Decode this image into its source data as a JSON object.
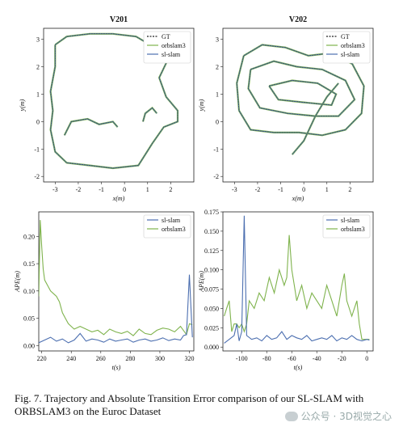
{
  "colors": {
    "gt": "#222222",
    "orbslam3": "#7fb34d",
    "slslam": "#4c6fb0"
  },
  "caption": "Fig. 7.  Trajectory and Absolute Transition Error comparison of our SL-SLAM with ORBSLAM3 on the Euroc Dataset",
  "watermark": "公众号 · 3D视觉之心",
  "chart_data": [
    {
      "type": "line",
      "title": "V201",
      "xlabel": "x(m)",
      "ylabel": "y(m)",
      "xlim": [
        -3.5,
        3.0
      ],
      "ylim": [
        -2.2,
        3.4
      ],
      "xticks": [
        -3,
        -2,
        -1,
        0,
        1,
        2
      ],
      "yticks": [
        -2,
        -1,
        0,
        1,
        2,
        3
      ],
      "legend": "top-right",
      "legend_entries": [
        "GT",
        "orbslam3",
        "sl-slam"
      ],
      "series": [
        {
          "name": "sl-slam",
          "points": [
            [
              -3.0,
              2.8
            ],
            [
              -2.5,
              3.1
            ],
            [
              -1.5,
              3.2
            ],
            [
              -0.5,
              3.2
            ],
            [
              0.5,
              3.1
            ],
            [
              1.3,
              2.7
            ],
            [
              1.9,
              2.3
            ],
            [
              1.5,
              1.6
            ],
            [
              1.8,
              0.9
            ],
            [
              2.3,
              0.4
            ],
            [
              2.3,
              0.0
            ],
            [
              1.7,
              -0.2
            ],
            [
              1.2,
              -0.8
            ],
            [
              0.6,
              -1.6
            ],
            [
              -0.5,
              -1.7
            ],
            [
              -1.5,
              -1.6
            ],
            [
              -2.5,
              -1.5
            ],
            [
              -3.0,
              -1.1
            ],
            [
              -3.2,
              -0.3
            ],
            [
              -3.1,
              0.4
            ],
            [
              -3.2,
              1.1
            ],
            [
              -3.0,
              2.0
            ],
            [
              -3.0,
              2.8
            ]
          ]
        },
        {
          "name": "sl-slam",
          "points": [
            [
              -2.6,
              -0.5
            ],
            [
              -2.3,
              0.0
            ],
            [
              -1.6,
              0.1
            ],
            [
              -1.1,
              -0.1
            ],
            [
              -0.5,
              0.0
            ],
            [
              -0.3,
              -0.2
            ]
          ]
        },
        {
          "name": "sl-slam",
          "points": [
            [
              0.8,
              0.0
            ],
            [
              0.9,
              0.3
            ],
            [
              1.2,
              0.5
            ],
            [
              1.4,
              0.3
            ]
          ]
        }
      ]
    },
    {
      "type": "line",
      "title": "V202",
      "xlabel": "x(m)",
      "ylabel": "y(m)",
      "xlim": [
        -3.5,
        3.0
      ],
      "ylim": [
        -2.2,
        3.4
      ],
      "xticks": [
        -3,
        -2,
        -1,
        0,
        1,
        2
      ],
      "yticks": [
        -2,
        -1,
        0,
        1,
        2,
        3
      ],
      "legend": "top-right",
      "legend_entries": [
        "GT",
        "orbslam3",
        "sl-slam"
      ],
      "series": [
        {
          "name": "sl-slam",
          "points": [
            [
              -2.6,
              2.4
            ],
            [
              -1.8,
              2.8
            ],
            [
              -0.8,
              2.7
            ],
            [
              0.2,
              2.4
            ],
            [
              1.2,
              2.5
            ],
            [
              2.1,
              2.1
            ],
            [
              2.6,
              1.3
            ],
            [
              2.5,
              0.3
            ],
            [
              1.8,
              -0.3
            ],
            [
              0.8,
              -0.5
            ],
            [
              -0.2,
              -0.4
            ],
            [
              -1.3,
              -0.4
            ],
            [
              -2.3,
              -0.3
            ],
            [
              -2.8,
              0.4
            ],
            [
              -2.9,
              1.4
            ],
            [
              -2.6,
              2.4
            ]
          ]
        },
        {
          "name": "sl-slam",
          "points": [
            [
              -2.3,
              1.9
            ],
            [
              -1.3,
              2.2
            ],
            [
              -0.3,
              2.0
            ],
            [
              0.8,
              1.9
            ],
            [
              1.8,
              1.5
            ],
            [
              2.2,
              0.8
            ],
            [
              1.5,
              0.2
            ],
            [
              0.5,
              0.2
            ],
            [
              -0.7,
              0.3
            ],
            [
              -1.9,
              0.5
            ],
            [
              -2.4,
              1.2
            ],
            [
              -2.3,
              1.9
            ]
          ]
        },
        {
          "name": "sl-slam",
          "points": [
            [
              -1.5,
              1.3
            ],
            [
              -0.5,
              1.5
            ],
            [
              0.6,
              1.4
            ],
            [
              1.4,
              1.0
            ],
            [
              1.2,
              0.6
            ],
            [
              0.0,
              0.7
            ],
            [
              -1.1,
              0.8
            ],
            [
              -1.5,
              1.3
            ]
          ]
        },
        {
          "name": "sl-slam",
          "points": [
            [
              -0.5,
              -1.2
            ],
            [
              0.0,
              -0.7
            ],
            [
              0.5,
              0.2
            ],
            [
              1.0,
              0.9
            ],
            [
              1.5,
              1.4
            ]
          ]
        }
      ]
    },
    {
      "type": "line",
      "xlabel": "t(s)",
      "ylabel": "APE(m)",
      "xlim": [
        218,
        323
      ],
      "ylim": [
        -0.01,
        0.245
      ],
      "xticks": [
        220,
        240,
        260,
        280,
        300,
        320
      ],
      "yticks": [
        0.0,
        0.05,
        0.1,
        0.15,
        0.2
      ],
      "ytick_labels": [
        "0.00",
        "0.05",
        "0.10",
        "0.15",
        "0.20"
      ],
      "legend": "top-right",
      "series": [
        {
          "name": "sl-slam",
          "x": [
            218,
            222,
            226,
            230,
            234,
            238,
            242,
            246,
            250,
            254,
            258,
            262,
            266,
            270,
            274,
            278,
            282,
            286,
            290,
            294,
            298,
            302,
            306,
            310,
            314,
            316,
            318,
            320,
            322
          ],
          "values": [
            0.005,
            0.01,
            0.015,
            0.008,
            0.012,
            0.005,
            0.01,
            0.022,
            0.008,
            0.012,
            0.01,
            0.006,
            0.012,
            0.008,
            0.01,
            0.012,
            0.006,
            0.01,
            0.012,
            0.008,
            0.01,
            0.014,
            0.009,
            0.012,
            0.01,
            0.018,
            0.02,
            0.13,
            0.015
          ]
        },
        {
          "name": "orbslam3",
          "x": [
            218,
            219,
            220,
            221,
            222,
            224,
            226,
            228,
            230,
            232,
            234,
            236,
            238,
            240,
            242,
            246,
            250,
            254,
            258,
            262,
            266,
            270,
            274,
            278,
            282,
            286,
            290,
            294,
            298,
            302,
            306,
            310,
            314,
            318,
            320,
            322
          ],
          "values": [
            0.09,
            0.23,
            0.18,
            0.14,
            0.12,
            0.11,
            0.1,
            0.095,
            0.09,
            0.08,
            0.06,
            0.05,
            0.04,
            0.035,
            0.03,
            0.035,
            0.03,
            0.025,
            0.028,
            0.02,
            0.03,
            0.025,
            0.022,
            0.026,
            0.018,
            0.03,
            0.022,
            0.02,
            0.028,
            0.032,
            0.03,
            0.025,
            0.035,
            0.02,
            0.04,
            0.038
          ]
        }
      ]
    },
    {
      "type": "line",
      "xlabel": "t(s)",
      "ylabel": "APE(m)",
      "xlim": [
        -115,
        5
      ],
      "ylim": [
        -0.005,
        0.175
      ],
      "xticks": [
        -100,
        -80,
        -60,
        -40,
        -20,
        0
      ],
      "yticks": [
        0.0,
        0.025,
        0.05,
        0.075,
        0.1,
        0.125,
        0.15,
        0.175
      ],
      "ytick_labels": [
        "0.000",
        "0.025",
        "0.050",
        "0.075",
        "0.100",
        "0.125",
        "0.150",
        "0.175"
      ],
      "legend": "top-right",
      "series": [
        {
          "name": "sl-slam",
          "x": [
            -114,
            -110,
            -106,
            -104,
            -102,
            -100,
            -98,
            -96,
            -92,
            -88,
            -84,
            -80,
            -76,
            -72,
            -68,
            -64,
            -60,
            -56,
            -52,
            -48,
            -44,
            -40,
            -36,
            -32,
            -28,
            -24,
            -20,
            -16,
            -12,
            -8,
            -4,
            0,
            2
          ],
          "values": [
            0.005,
            0.01,
            0.015,
            0.03,
            0.008,
            0.02,
            0.17,
            0.015,
            0.01,
            0.012,
            0.008,
            0.015,
            0.01,
            0.012,
            0.02,
            0.01,
            0.015,
            0.012,
            0.01,
            0.015,
            0.008,
            0.01,
            0.012,
            0.01,
            0.015,
            0.008,
            0.012,
            0.01,
            0.015,
            0.01,
            0.008,
            0.01,
            0.009
          ]
        },
        {
          "name": "orbslam3",
          "x": [
            -114,
            -112,
            -110,
            -108,
            -106,
            -104,
            -102,
            -100,
            -98,
            -96,
            -94,
            -90,
            -86,
            -82,
            -78,
            -74,
            -70,
            -66,
            -64,
            -62,
            -60,
            -58,
            -56,
            -52,
            -48,
            -44,
            -40,
            -36,
            -32,
            -28,
            -24,
            -20,
            -18,
            -16,
            -12,
            -8,
            -6,
            -4,
            0,
            2
          ],
          "values": [
            0.04,
            0.05,
            0.06,
            0.02,
            0.03,
            0.03,
            0.025,
            0.03,
            0.02,
            0.03,
            0.06,
            0.05,
            0.07,
            0.06,
            0.09,
            0.07,
            0.1,
            0.08,
            0.09,
            0.145,
            0.1,
            0.08,
            0.06,
            0.08,
            0.05,
            0.07,
            0.06,
            0.05,
            0.08,
            0.06,
            0.04,
            0.08,
            0.095,
            0.06,
            0.04,
            0.06,
            0.03,
            0.01,
            0.01,
            0.01
          ]
        }
      ]
    }
  ]
}
